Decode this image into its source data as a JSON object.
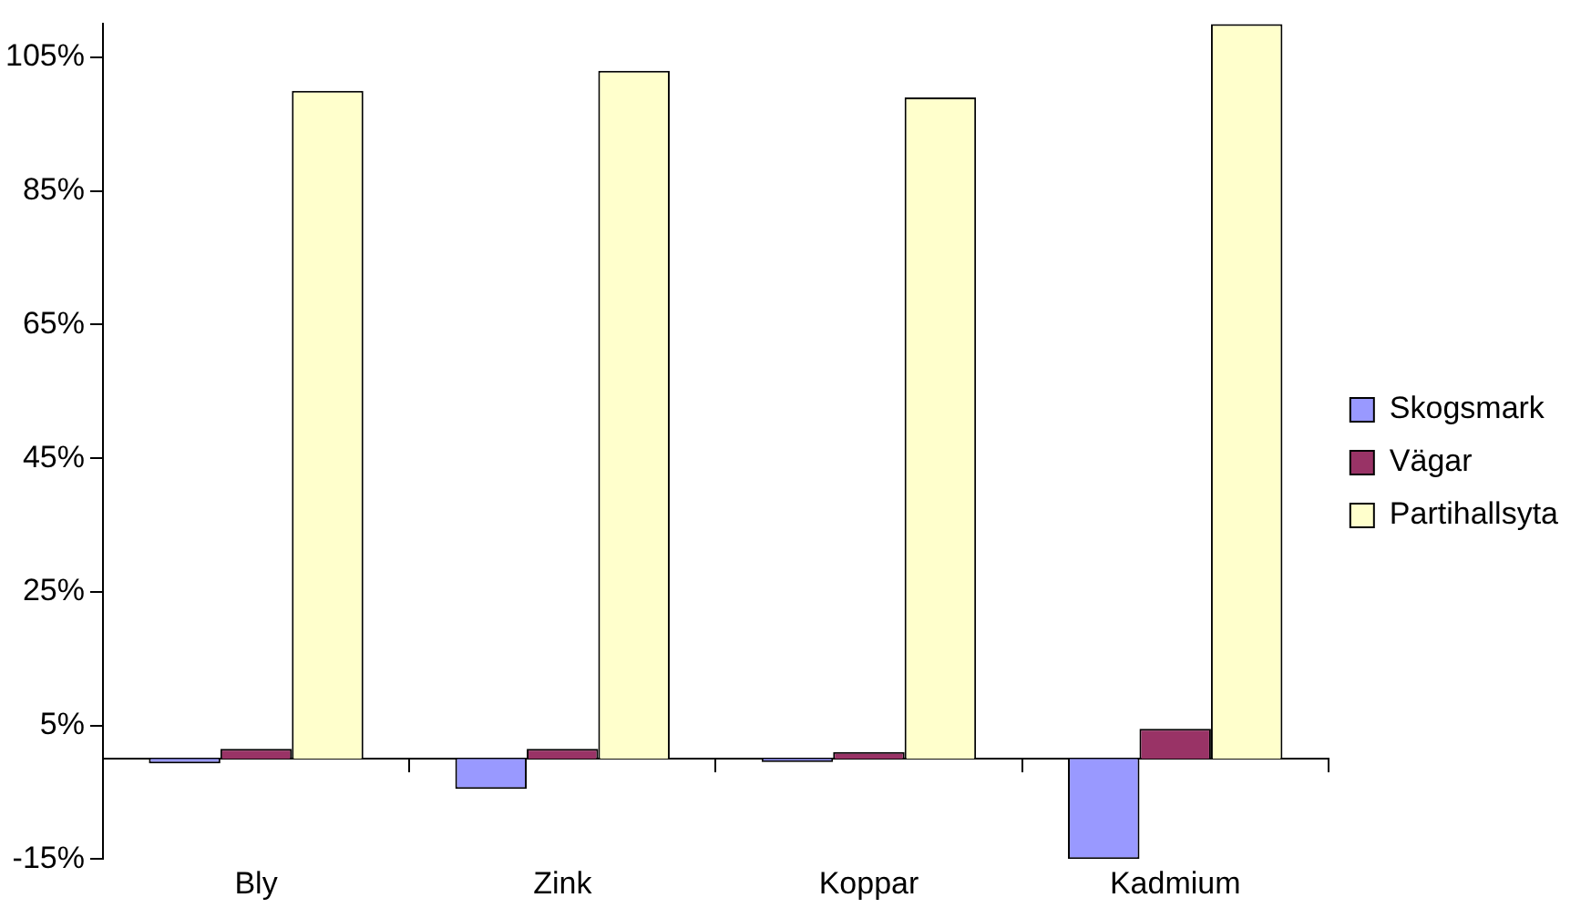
{
  "chart_data": {
    "type": "bar",
    "categories": [
      "Bly",
      "Zink",
      "Koppar",
      "Kadmium"
    ],
    "series": [
      {
        "name": "Skogsmark",
        "color": "#9999ff",
        "values": [
          -0.7,
          -4.5,
          -0.5,
          -15
        ]
      },
      {
        "name": "Vägar",
        "color": "#993366",
        "values": [
          1.5,
          1.5,
          1,
          4.5
        ]
      },
      {
        "name": "Partihallsyta",
        "color": "#ffffcc",
        "values": [
          100,
          103,
          99,
          110
        ]
      }
    ],
    "ylim": [
      -15,
      110
    ],
    "yticks": [
      {
        "value": -15,
        "label": "-15%"
      },
      {
        "value": 5,
        "label": "5%"
      },
      {
        "value": 25,
        "label": "25%"
      },
      {
        "value": 45,
        "label": "45%"
      },
      {
        "value": 65,
        "label": "65%"
      },
      {
        "value": 85,
        "label": "85%"
      },
      {
        "value": 105,
        "label": "105%"
      }
    ],
    "grid": false,
    "legend": "right"
  }
}
